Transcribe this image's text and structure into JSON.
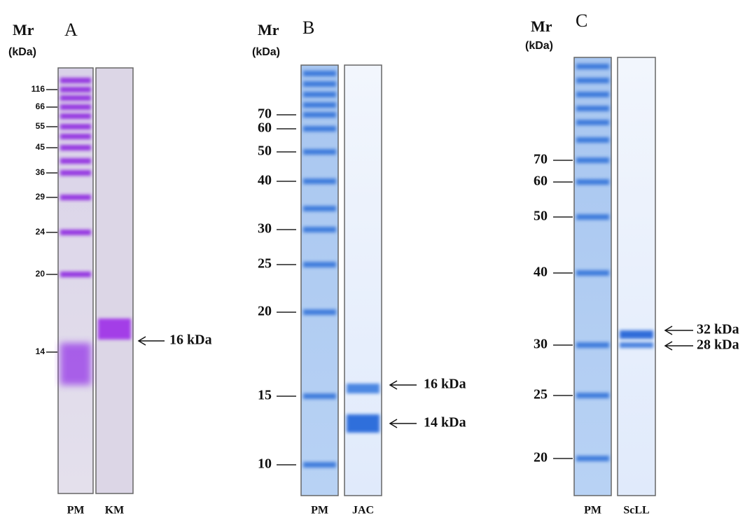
{
  "panels": [
    {
      "label": "A",
      "mr": "Mr",
      "unit": "(kDa)",
      "markers": [
        "116",
        "66",
        "55",
        "45",
        "36",
        "29",
        "24",
        "20",
        "14"
      ],
      "lanes": [
        "PM",
        "KM"
      ],
      "bands": [
        "16 kDa"
      ]
    },
    {
      "label": "B",
      "mr": "Mr",
      "unit": "(kDa)",
      "markers": [
        "70",
        "60",
        "50",
        "40",
        "30",
        "25",
        "20",
        "15",
        "10"
      ],
      "lanes": [
        "PM",
        "JAC"
      ],
      "bands": [
        "16 kDa",
        "14 kDa"
      ]
    },
    {
      "label": "C",
      "mr": "Mr",
      "unit": "(kDa)",
      "markers": [
        "70",
        "60",
        "50",
        "40",
        "30",
        "25",
        "20"
      ],
      "lanes": [
        "PM",
        "ScLL"
      ],
      "bands": [
        "32 kDa",
        "28 kDa"
      ]
    }
  ]
}
